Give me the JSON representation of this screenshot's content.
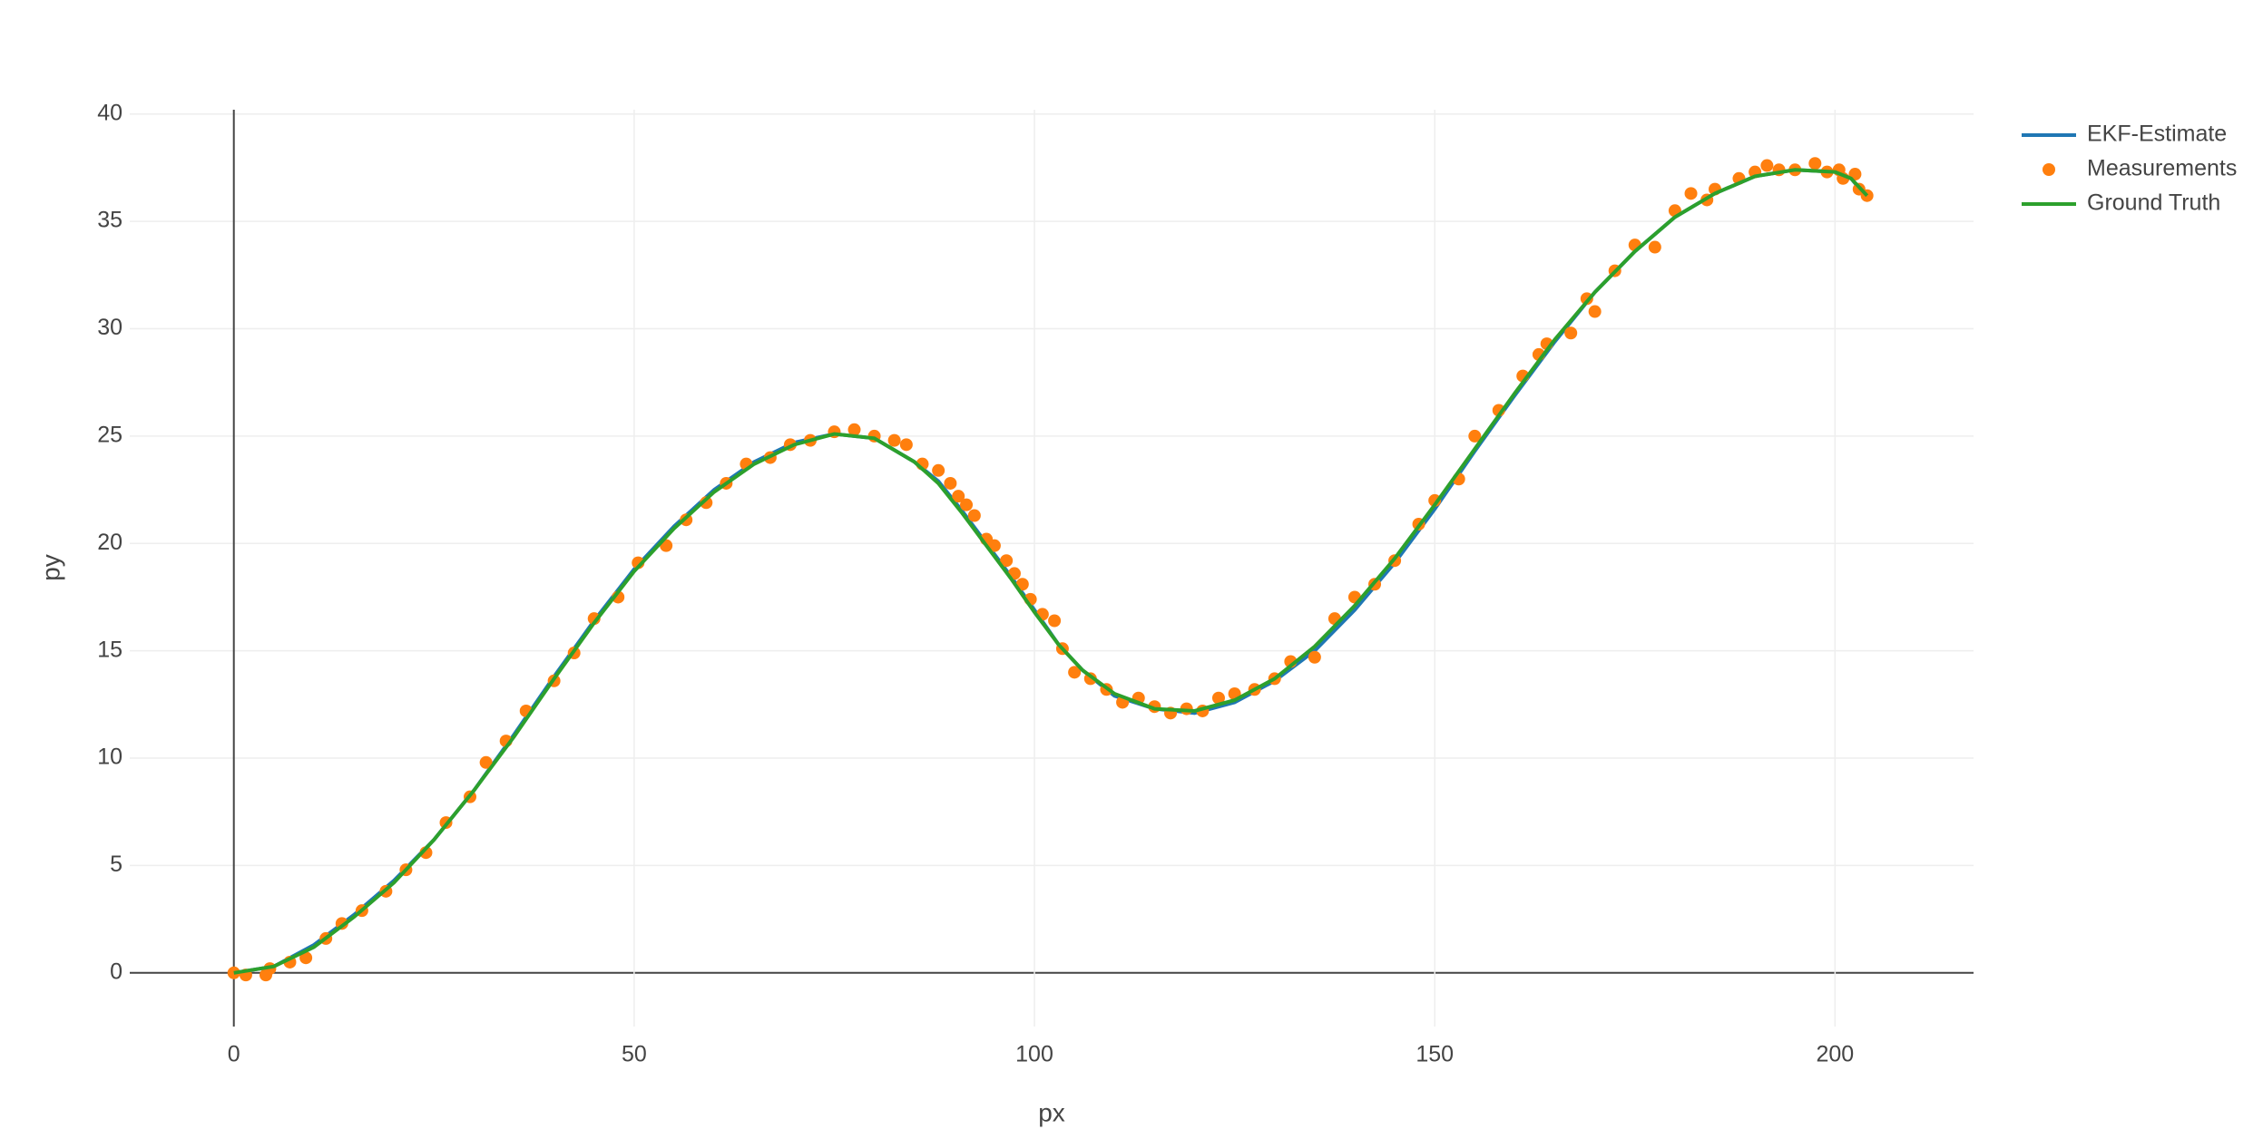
{
  "chart_data": {
    "type": "line",
    "x_label": "px",
    "y_label": "py",
    "xlim": [
      -13,
      217.3
    ],
    "ylim": [
      -2.5,
      40.2
    ],
    "xticks": [
      0,
      50,
      100,
      150,
      200
    ],
    "yticks": [
      0,
      5,
      10,
      15,
      20,
      25,
      30,
      35,
      40
    ],
    "grid": true,
    "legend": "top-right",
    "series": [
      {
        "name": "EKF-Estimate",
        "mode": "lines",
        "color": "#1f77b4",
        "x": [
          0,
          5,
          10,
          15,
          20,
          25,
          30,
          35,
          40,
          45,
          50,
          55,
          60,
          65,
          70,
          75,
          80,
          85,
          88,
          91,
          94,
          97,
          100,
          103,
          106,
          110,
          115,
          120,
          125,
          130,
          135,
          140,
          145,
          150,
          155,
          160,
          165,
          170,
          175,
          180,
          185,
          190,
          195,
          200,
          202,
          204
        ],
        "values": [
          0,
          0.3,
          1.3,
          2.7,
          4.3,
          6.2,
          8.5,
          11.1,
          13.8,
          16.4,
          18.8,
          20.8,
          22.5,
          23.8,
          24.7,
          25.1,
          24.9,
          23.8,
          22.9,
          21.5,
          20,
          18.5,
          16.9,
          15.3,
          14.1,
          12.9,
          12.3,
          12.1,
          12.6,
          13.6,
          15,
          16.9,
          19.1,
          21.6,
          24.3,
          26.9,
          29.4,
          31.7,
          33.6,
          35.2,
          36.3,
          37.1,
          37.4,
          37.3,
          37,
          36.1
        ]
      },
      {
        "name": "Measurements",
        "mode": "markers",
        "color": "#ff7f0e",
        "x": [
          0,
          1.5,
          4,
          4.5,
          7,
          9,
          11.5,
          13.5,
          16,
          19,
          21.5,
          24,
          26.5,
          29.5,
          31.5,
          34,
          36.5,
          40,
          42.5,
          45,
          48,
          50.5,
          54,
          56.5,
          59,
          61.5,
          64,
          67,
          69.5,
          72,
          75,
          77.5,
          80,
          82.5,
          84,
          86,
          88,
          89.5,
          90.5,
          91.5,
          92.5,
          94,
          95,
          96.5,
          97.5,
          98.5,
          99.5,
          101,
          102.5,
          103.5,
          105,
          107,
          109,
          111,
          113,
          115,
          117,
          119,
          121,
          123,
          125,
          127.5,
          130,
          132,
          135,
          137.5,
          140,
          142.5,
          145,
          148,
          150,
          153,
          155,
          158,
          161,
          163,
          164,
          167,
          169,
          170,
          172.5,
          175,
          177.5,
          180,
          182,
          184,
          185,
          188,
          190,
          191.5,
          193,
          195,
          197.5,
          199,
          200.5,
          201,
          202.5,
          203,
          204
        ],
        "values": [
          0,
          -0.1,
          -0.1,
          0.2,
          0.5,
          0.7,
          1.6,
          2.3,
          2.9,
          3.8,
          4.8,
          5.6,
          7,
          8.2,
          9.8,
          10.8,
          12.2,
          13.6,
          14.9,
          16.5,
          17.5,
          19.1,
          19.9,
          21.1,
          21.9,
          22.8,
          23.7,
          24,
          24.6,
          24.8,
          25.2,
          25.3,
          25,
          24.8,
          24.6,
          23.7,
          23.4,
          22.8,
          22.2,
          21.8,
          21.3,
          20.2,
          19.9,
          19.2,
          18.6,
          18.1,
          17.4,
          16.7,
          16.4,
          15.1,
          14,
          13.7,
          13.2,
          12.6,
          12.8,
          12.4,
          12.1,
          12.3,
          12.2,
          12.8,
          13,
          13.2,
          13.7,
          14.5,
          14.7,
          16.5,
          17.5,
          18.1,
          19.2,
          20.9,
          22,
          23,
          25,
          26.2,
          27.8,
          28.8,
          29.3,
          29.8,
          31.4,
          30.8,
          32.7,
          33.9,
          33.8,
          35.5,
          36.3,
          36,
          36.5,
          37,
          37.3,
          37.6,
          37.4,
          37.4,
          37.7,
          37.3,
          37.4,
          37,
          37.2,
          36.5,
          36.2
        ]
      },
      {
        "name": "Ground Truth",
        "mode": "lines",
        "color": "#2ca02c",
        "x": [
          0,
          5,
          10,
          15,
          20,
          25,
          30,
          35,
          40,
          45,
          50,
          55,
          60,
          65,
          70,
          75,
          80,
          85,
          88,
          91,
          94,
          97,
          100,
          103,
          106,
          110,
          115,
          120,
          125,
          130,
          135,
          140,
          145,
          150,
          155,
          160,
          165,
          170,
          175,
          180,
          185,
          190,
          195,
          200,
          202,
          204
        ],
        "values": [
          0,
          0.3,
          1.2,
          2.6,
          4.2,
          6.2,
          8.5,
          11,
          13.7,
          16.3,
          18.7,
          20.7,
          22.4,
          23.7,
          24.6,
          25.1,
          24.9,
          23.8,
          22.8,
          21.4,
          19.9,
          18.4,
          16.8,
          15.3,
          14.1,
          13,
          12.3,
          12.2,
          12.7,
          13.7,
          15.2,
          17.1,
          19.3,
          21.8,
          24.4,
          27,
          29.5,
          31.7,
          33.6,
          35.2,
          36.3,
          37.1,
          37.4,
          37.3,
          37,
          36.2
        ]
      }
    ]
  }
}
